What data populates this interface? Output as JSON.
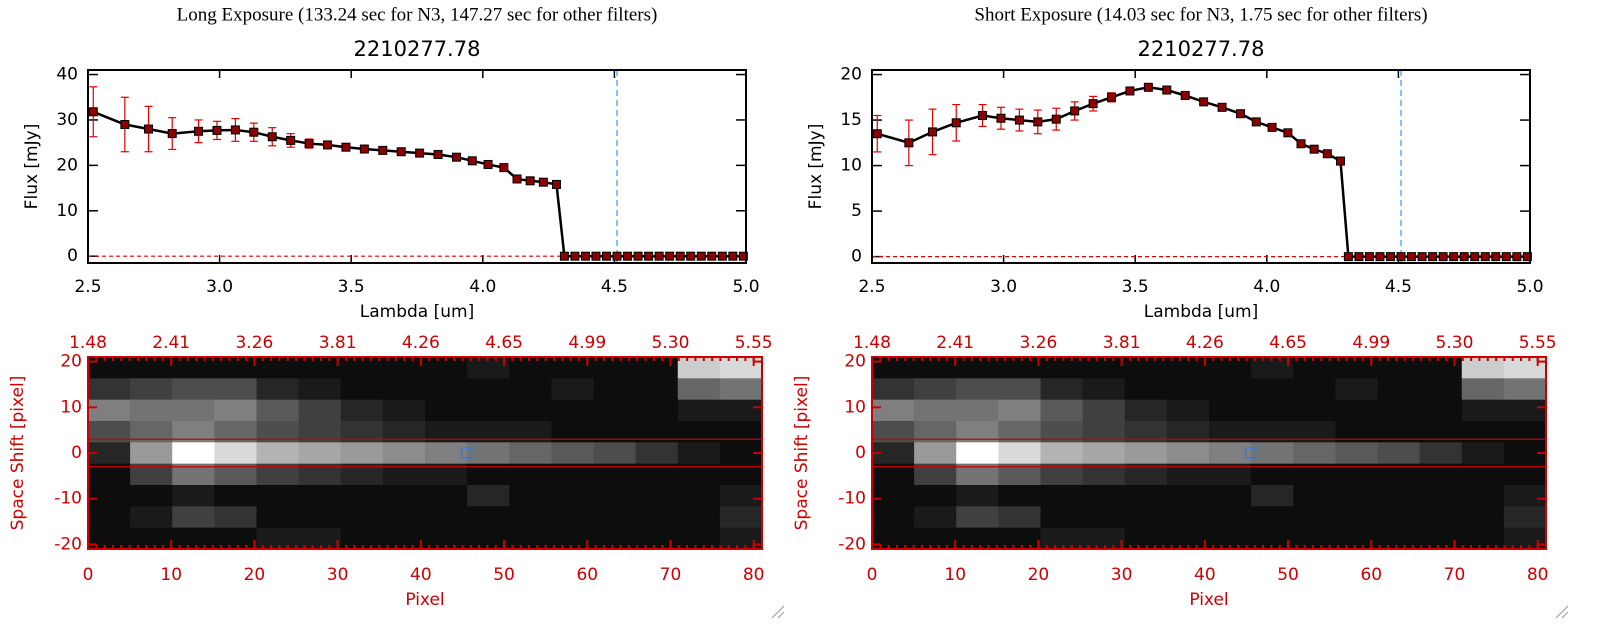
{
  "chart_data": [
    {
      "type": "line",
      "title": "Long Exposure (133.24 sec for N3, 147.27 sec for other filters)",
      "subtitle": "2210277.78",
      "xlabel": "Lambda [um]",
      "ylabel": "Flux [mJy]",
      "x": [
        2.52,
        2.64,
        2.73,
        2.82,
        2.92,
        2.99,
        3.06,
        3.13,
        3.2,
        3.27,
        3.34,
        3.41,
        3.48,
        3.55,
        3.62,
        3.69,
        3.76,
        3.83,
        3.9,
        3.96,
        4.02,
        4.08,
        4.13,
        4.18,
        4.23,
        4.28,
        4.31,
        4.35,
        4.39,
        4.43,
        4.47,
        4.51,
        4.55,
        4.59,
        4.63,
        4.67,
        4.71,
        4.75,
        4.79,
        4.83,
        4.87,
        4.91,
        4.95,
        4.99
      ],
      "values": [
        31.8,
        29,
        28,
        27,
        27.5,
        27.7,
        27.8,
        27.3,
        26.3,
        25.5,
        24.8,
        24.5,
        24,
        23.6,
        23.3,
        23,
        22.7,
        22.4,
        21.8,
        21,
        20.2,
        19.5,
        17.0,
        16.6,
        16.3,
        15.8,
        0,
        0,
        0,
        0,
        0,
        0,
        0,
        0,
        0,
        0,
        0,
        0,
        0,
        0,
        0,
        0,
        0,
        0
      ],
      "errors": [
        5.5,
        6,
        5,
        3.5,
        2.5,
        2,
        2.5,
        2,
        2,
        1.5,
        1,
        0.8,
        0.6,
        0.5,
        0.5,
        0.5,
        0.5,
        0.5,
        0.5,
        0.5,
        0.5,
        0.5,
        0.5,
        0.5,
        0.5,
        0.5,
        0,
        0,
        0,
        0,
        0,
        0,
        0,
        0,
        0,
        0,
        0,
        0,
        0,
        0,
        0,
        0,
        0,
        0
      ],
      "xlim": [
        2.5,
        5.0
      ],
      "ylim": [
        -1.5,
        41
      ],
      "xticks": [
        2.5,
        {
          "value": 3,
          "label": "3.0"
        },
        3.5,
        {
          "value": 4,
          "label": "4.0"
        },
        4.5,
        {
          "value": 5,
          "label": "5.0"
        }
      ],
      "yticks": [
        0,
        10,
        20,
        30,
        40
      ],
      "vline": 4.51,
      "hline": 0,
      "color": "#8b0000",
      "line_color": "#000000",
      "error_color": "#e00000",
      "vline_color": "#3399ff",
      "hline_color": "#e00000"
    },
    {
      "type": "line",
      "title": "Short Exposure (14.03 sec for N3, 1.75 sec for other filters)",
      "subtitle": "2210277.78",
      "xlabel": "Lambda [um]",
      "ylabel": "Flux [mJy]",
      "x": [
        2.52,
        2.64,
        2.73,
        2.82,
        2.92,
        2.99,
        3.06,
        3.13,
        3.2,
        3.27,
        3.34,
        3.41,
        3.48,
        3.55,
        3.62,
        3.69,
        3.76,
        3.83,
        3.9,
        3.96,
        4.02,
        4.08,
        4.13,
        4.18,
        4.23,
        4.28,
        4.31,
        4.35,
        4.39,
        4.43,
        4.47,
        4.51,
        4.55,
        4.59,
        4.63,
        4.67,
        4.71,
        4.75,
        4.79,
        4.83,
        4.87,
        4.91,
        4.95,
        4.99
      ],
      "values": [
        13.5,
        12.5,
        13.7,
        14.7,
        15.5,
        15.2,
        15,
        14.8,
        15.1,
        16,
        16.8,
        17.5,
        18.2,
        18.6,
        18.3,
        17.7,
        17,
        16.4,
        15.7,
        14.8,
        14.2,
        13.6,
        12.4,
        11.8,
        11.3,
        10.5,
        0,
        0,
        0,
        0,
        0,
        0,
        0,
        0,
        0,
        0,
        0,
        0,
        0,
        0,
        0,
        0,
        0,
        0
      ],
      "errors": [
        2,
        2.5,
        2.5,
        2,
        1.2,
        1.2,
        1.2,
        1.3,
        1.2,
        1,
        0.8,
        0.5,
        0.4,
        0.4,
        0.3,
        0.3,
        0.3,
        0.3,
        0.3,
        0.3,
        0.3,
        0.3,
        0.3,
        0.3,
        0.3,
        0.3,
        0,
        0,
        0,
        0,
        0,
        0,
        0,
        0,
        0,
        0,
        0,
        0,
        0,
        0,
        0,
        0,
        0,
        0
      ],
      "xlim": [
        2.5,
        5.0
      ],
      "ylim": [
        -0.7,
        20.5
      ],
      "xticks": [
        2.5,
        {
          "value": 3,
          "label": "3.0"
        },
        3.5,
        {
          "value": 4,
          "label": "4.0"
        },
        4.5,
        {
          "value": 5,
          "label": "5.0"
        }
      ],
      "yticks": [
        0,
        5,
        10,
        15,
        20
      ],
      "vline": 4.51,
      "hline": 0,
      "color": "#8b0000",
      "line_color": "#000000",
      "error_color": "#e00000",
      "vline_color": "#3399ff",
      "hline_color": "#e00000"
    },
    {
      "type": "image",
      "xlabel": "Pixel",
      "ylabel": "Space Shift [pixel]",
      "xlim": [
        0,
        81
      ],
      "ylim": [
        -21,
        21
      ],
      "xticks": [
        0,
        10,
        20,
        30,
        40,
        50,
        60,
        70,
        80
      ],
      "yticks": [
        -20,
        -10,
        0,
        10,
        20
      ],
      "x2ticks": [
        {
          "value": 0,
          "label": "1.48"
        },
        {
          "value": 10,
          "label": "2.41"
        },
        {
          "value": 20,
          "label": "3.26"
        },
        {
          "value": 30,
          "label": "3.81"
        },
        {
          "value": 40,
          "label": "4.26"
        },
        {
          "value": 50,
          "label": "4.65"
        },
        {
          "value": 60,
          "label": "4.99"
        },
        {
          "value": 70,
          "label": "5.30"
        },
        {
          "value": 80,
          "label": "5.55"
        }
      ],
      "hlines": [
        3,
        -3
      ],
      "marker": [
        45.5,
        0
      ],
      "image": [
        [
          5,
          5,
          5,
          5,
          5,
          5,
          5,
          5,
          5,
          10,
          5,
          5,
          5,
          5,
          80,
          85
        ],
        [
          20,
          25,
          30,
          30,
          15,
          10,
          5,
          5,
          5,
          5,
          5,
          10,
          5,
          5,
          40,
          45
        ],
        [
          50,
          45,
          45,
          50,
          35,
          25,
          15,
          10,
          5,
          5,
          5,
          5,
          5,
          5,
          10,
          10
        ],
        [
          30,
          40,
          50,
          40,
          30,
          25,
          20,
          15,
          10,
          10,
          10,
          5,
          5,
          5,
          5,
          5
        ],
        [
          15,
          60,
          100,
          85,
          70,
          65,
          60,
          55,
          50,
          45,
          40,
          35,
          30,
          20,
          10,
          5
        ],
        [
          5,
          25,
          45,
          35,
          25,
          20,
          15,
          10,
          10,
          5,
          5,
          5,
          5,
          5,
          5,
          5
        ],
        [
          5,
          5,
          10,
          5,
          5,
          5,
          5,
          5,
          5,
          15,
          5,
          5,
          5,
          5,
          5,
          10
        ],
        [
          5,
          10,
          25,
          20,
          5,
          5,
          5,
          5,
          5,
          5,
          5,
          5,
          5,
          5,
          5,
          15
        ],
        [
          5,
          5,
          5,
          5,
          10,
          10,
          5,
          5,
          5,
          5,
          5,
          5,
          5,
          5,
          5,
          10
        ]
      ],
      "axis_color": "#cc0000",
      "line_color": "#cc0000",
      "marker_color": "#3a7bd5"
    },
    {
      "type": "image",
      "xlabel": "Pixel",
      "ylabel": "Space Shift [pixel]",
      "xlim": [
        0,
        81
      ],
      "ylim": [
        -21,
        21
      ],
      "xticks": [
        0,
        10,
        20,
        30,
        40,
        50,
        60,
        70,
        80
      ],
      "yticks": [
        -20,
        -10,
        0,
        10,
        20
      ],
      "x2ticks": [
        {
          "value": 0,
          "label": "1.48"
        },
        {
          "value": 10,
          "label": "2.41"
        },
        {
          "value": 20,
          "label": "3.26"
        },
        {
          "value": 30,
          "label": "3.81"
        },
        {
          "value": 40,
          "label": "4.26"
        },
        {
          "value": 50,
          "label": "4.65"
        },
        {
          "value": 60,
          "label": "4.99"
        },
        {
          "value": 70,
          "label": "5.30"
        },
        {
          "value": 80,
          "label": "5.55"
        }
      ],
      "hlines": [
        3,
        -3
      ],
      "marker": [
        45.5,
        0
      ],
      "image": [
        [
          5,
          5,
          5,
          5,
          5,
          5,
          5,
          5,
          5,
          10,
          5,
          5,
          5,
          5,
          80,
          85
        ],
        [
          20,
          25,
          30,
          30,
          15,
          10,
          5,
          5,
          5,
          5,
          5,
          10,
          5,
          5,
          40,
          45
        ],
        [
          50,
          45,
          45,
          50,
          35,
          25,
          15,
          10,
          5,
          5,
          5,
          5,
          5,
          5,
          10,
          10
        ],
        [
          30,
          40,
          50,
          40,
          30,
          25,
          20,
          15,
          10,
          10,
          10,
          5,
          5,
          5,
          5,
          5
        ],
        [
          15,
          60,
          100,
          85,
          70,
          65,
          60,
          55,
          50,
          45,
          40,
          35,
          30,
          20,
          10,
          5
        ],
        [
          5,
          25,
          45,
          35,
          25,
          20,
          15,
          10,
          10,
          5,
          5,
          5,
          5,
          5,
          5,
          5
        ],
        [
          5,
          5,
          10,
          5,
          5,
          5,
          5,
          5,
          5,
          15,
          5,
          5,
          5,
          5,
          5,
          10
        ],
        [
          5,
          10,
          25,
          20,
          5,
          5,
          5,
          5,
          5,
          5,
          5,
          5,
          5,
          5,
          5,
          15
        ],
        [
          5,
          5,
          5,
          5,
          10,
          10,
          5,
          5,
          5,
          5,
          5,
          5,
          5,
          5,
          5,
          10
        ]
      ],
      "axis_color": "#cc0000",
      "line_color": "#cc0000",
      "marker_color": "#3a7bd5"
    }
  ]
}
